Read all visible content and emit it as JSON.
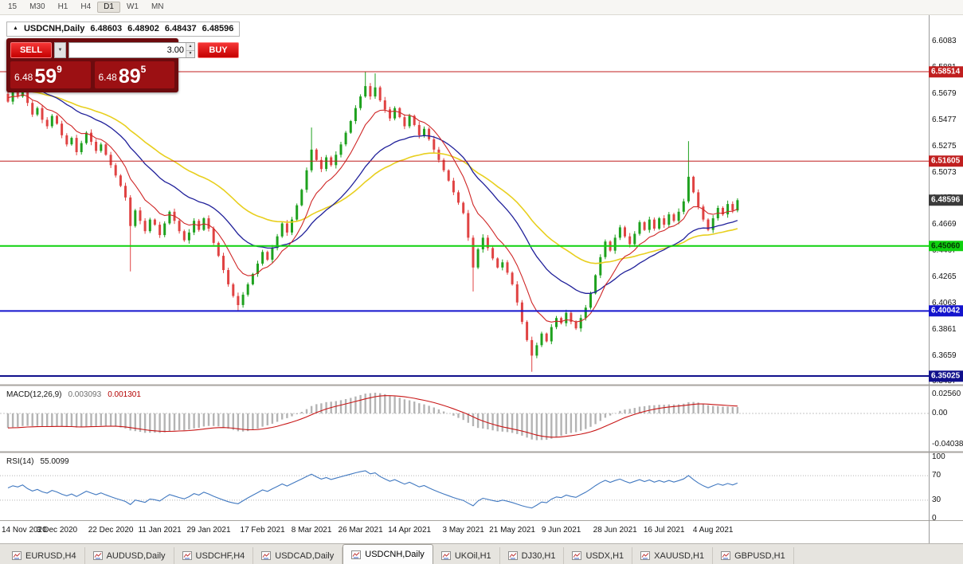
{
  "toolbar": {
    "periods": [
      {
        "label": "15"
      },
      {
        "label": "M30"
      },
      {
        "label": "H1"
      },
      {
        "label": "H4"
      },
      {
        "label": "D1",
        "active": true
      },
      {
        "label": "W1"
      },
      {
        "label": "MN"
      }
    ]
  },
  "icons": {
    "dropdown": "▼",
    "step_up": "▲",
    "step_down": "▼"
  },
  "chart_header": {
    "collapse_icon": "▲",
    "symbol": "USDCNH,Daily",
    "open": "6.48603",
    "high": "6.48902",
    "low": "6.48437",
    "close": "6.48596"
  },
  "trade_panel": {
    "sell_label": "SELL",
    "buy_label": "BUY",
    "volume": "3.00",
    "sell_price": {
      "prefix": "6.48",
      "big": "59",
      "pip": "9"
    },
    "buy_price": {
      "prefix": "6.48",
      "big": "89",
      "pip": "5"
    }
  },
  "chart_data": [
    {
      "type": "candlestick",
      "title": "USDCNH,Daily",
      "ylim": [
        6.3441,
        6.622
      ],
      "y_ticks": [
        "6.6083",
        "6.5881",
        "6.5679",
        "6.5477",
        "6.5275",
        "6.5073",
        "6.4871",
        "6.4669",
        "6.4467",
        "6.4265",
        "6.4063",
        "6.3861",
        "6.3659",
        "6.3457"
      ],
      "x_labels": [
        "14 Nov 2020",
        "3 Dec 2020",
        "22 Dec 2020",
        "11 Jan 2021",
        "29 Jan 2021",
        "17 Feb 2021",
        "8 Mar 2021",
        "26 Mar 2021",
        "14 Apr 2021",
        "3 May 2021",
        "21 May 2021",
        "9 Jun 2021",
        "28 Jun 2021",
        "16 Jul 2021",
        "4 Aug 2021"
      ],
      "x_label_indices": [
        0,
        10,
        21,
        31,
        41,
        52,
        62,
        72,
        82,
        93,
        103,
        113,
        124,
        134,
        144
      ],
      "closes": [
        6.562,
        6.57,
        6.566,
        6.573,
        6.561,
        6.552,
        6.557,
        6.548,
        6.543,
        6.551,
        6.545,
        6.536,
        6.529,
        6.534,
        6.523,
        6.53,
        6.538,
        6.531,
        6.524,
        6.529,
        6.521,
        6.513,
        6.505,
        6.497,
        6.488,
        6.466,
        6.478,
        6.47,
        6.462,
        6.471,
        6.467,
        6.459,
        6.468,
        6.477,
        6.47,
        6.462,
        6.455,
        6.461,
        6.47,
        6.463,
        6.472,
        6.464,
        6.453,
        6.443,
        6.432,
        6.421,
        6.412,
        6.405,
        6.413,
        6.421,
        6.429,
        6.437,
        6.446,
        6.44,
        6.449,
        6.458,
        6.468,
        6.461,
        6.471,
        6.482,
        6.494,
        6.509,
        6.525,
        6.517,
        6.51,
        6.519,
        6.513,
        6.521,
        6.529,
        6.538,
        6.547,
        6.557,
        6.566,
        6.574,
        6.566,
        6.573,
        6.563,
        6.556,
        6.549,
        6.557,
        6.55,
        6.543,
        6.551,
        6.544,
        6.536,
        6.541,
        6.533,
        6.525,
        6.517,
        6.509,
        6.501,
        6.492,
        6.484,
        6.476,
        6.457,
        6.434,
        6.448,
        6.457,
        6.449,
        6.441,
        6.434,
        6.438,
        6.43,
        6.421,
        6.407,
        6.392,
        6.378,
        6.366,
        6.374,
        6.383,
        6.377,
        6.388,
        6.395,
        6.391,
        6.399,
        6.392,
        6.387,
        6.395,
        6.403,
        6.414,
        6.428,
        6.442,
        6.454,
        6.447,
        6.457,
        6.465,
        6.458,
        6.452,
        6.46,
        6.469,
        6.463,
        6.471,
        6.464,
        6.472,
        6.467,
        6.475,
        6.47,
        6.477,
        6.485,
        6.504,
        6.492,
        6.481,
        6.471,
        6.463,
        6.472,
        6.48,
        6.475,
        6.483,
        6.478,
        6.48596
      ],
      "wick_overrides": [
        {
          "i": 0,
          "high": 6.576
        },
        {
          "i": 3,
          "high": 6.578
        },
        {
          "i": 25,
          "low": 6.431
        },
        {
          "i": 47,
          "low": 6.4005
        },
        {
          "i": 62,
          "high": 6.542
        },
        {
          "i": 73,
          "high": 6.5848
        },
        {
          "i": 75,
          "high": 6.5838
        },
        {
          "i": 95,
          "low": 6.4155
        },
        {
          "i": 107,
          "low": 6.3535
        },
        {
          "i": 139,
          "high": 6.5315
        }
      ],
      "up_color": "#1ea11e",
      "down_color": "#e04343",
      "ma_lines": [
        {
          "name": "ma-slow-yellow",
          "color": "#e8cf1e",
          "width": 1.6
        },
        {
          "name": "ma-mid-blue",
          "color": "#20209a",
          "width": 1.3
        },
        {
          "name": "ma-fast-red",
          "color": "#cf2626",
          "width": 1.1
        }
      ],
      "hlines": [
        {
          "price": 6.58514,
          "label": "6.58514",
          "color": "#c01f1f",
          "lw": 1
        },
        {
          "price": 6.51605,
          "label": "6.51605",
          "color": "#c01f1f",
          "lw": 1
        },
        {
          "price": 6.4506,
          "label": "6.45060",
          "color": "#0fd20f",
          "lw": 2,
          "fg": "#063306"
        },
        {
          "price": 6.40042,
          "label": "6.40042",
          "color": "#1414cd",
          "lw": 2
        },
        {
          "price": 6.35025,
          "label": "6.35025",
          "color": "#10108c",
          "lw": 2
        }
      ],
      "current_price": {
        "price": 6.48596,
        "label": "6.48596",
        "bg": "#3a3a3a"
      }
    },
    {
      "type": "macd",
      "label": "MACD(12,26,9)",
      "value_main": "0.003093",
      "value_signal": "0.001301",
      "params": {
        "fast": 12,
        "slow": 26,
        "signal": 9
      },
      "histogram_color": "#b4b4b4",
      "signal_color": "#c81616",
      "y_ticks": [
        {
          "v": 0.0256,
          "label": "0.02560"
        },
        {
          "v": 0,
          "label": "0.00"
        },
        {
          "v": -0.04038,
          "label": "-0.04038"
        }
      ]
    },
    {
      "type": "rsi",
      "label": "RSI(14)",
      "value": "55.0099",
      "period": 14,
      "line_color": "#4078c0",
      "levels": [
        {
          "v": 100,
          "label": "100"
        },
        {
          "v": 70,
          "label": "70"
        },
        {
          "v": 30,
          "label": "30"
        },
        {
          "v": 0,
          "label": "0"
        }
      ]
    }
  ],
  "tabs": [
    {
      "label": "EURUSD,H4"
    },
    {
      "label": "AUDUSD,Daily"
    },
    {
      "label": "USDCHF,H4"
    },
    {
      "label": "USDCAD,Daily"
    },
    {
      "label": "USDCNH,Daily",
      "active": true
    },
    {
      "label": "UKOil,H1"
    },
    {
      "label": "DJ30,H1"
    },
    {
      "label": "USDX,H1"
    },
    {
      "label": "XAUUSD,H1"
    },
    {
      "label": "GBPUSD,H1"
    }
  ]
}
